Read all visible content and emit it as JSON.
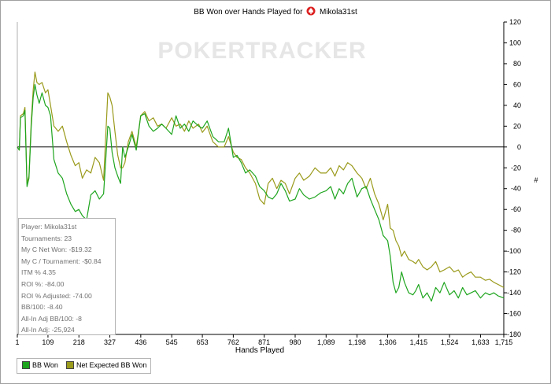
{
  "title_prefix": "BB Won over Hands Played for",
  "player_name": "Mikola31st",
  "watermark": "POKERTRACKER",
  "stats": [
    "Player: Mikola31st",
    "Tournaments: 23",
    "My C Net Won: -$19.32",
    "My C / Tournament: -$0.84",
    "ITM % 4.35",
    "ROI %: -84.00",
    "ROI % Adjusted: -74.00",
    "BB/100: -8.40",
    "All-In Adj BB/100: -8",
    "All-In Adj: -25,924"
  ],
  "legend": [
    {
      "label": "BB Won",
      "color": "#1ea51e"
    },
    {
      "label": "Net Expected BB Won",
      "color": "#9a9a1c"
    }
  ],
  "chart_data": {
    "type": "line",
    "title": "BB Won over Hands Played for Mikola31st",
    "xlabel": "Hands Played",
    "ylabel": "",
    "y_unit_label": "#",
    "xlim": [
      1,
      1715
    ],
    "ylim": [
      -180,
      120
    ],
    "x_ticks": [
      1,
      109,
      218,
      327,
      436,
      545,
      653,
      762,
      871,
      980,
      1089,
      1198,
      1306,
      1415,
      1524,
      1633,
      1715
    ],
    "y_ticks": [
      120,
      100,
      80,
      60,
      40,
      20,
      0,
      -20,
      -40,
      -60,
      -80,
      -100,
      -120,
      -140,
      -160,
      -180
    ],
    "zero_line": true,
    "grid": false,
    "series": [
      {
        "name": "BB Won",
        "color": "#1ea51e",
        "x": [
          1,
          8,
          12,
          22,
          28,
          35,
          42,
          50,
          57,
          63,
          70,
          78,
          88,
          100,
          109,
          118,
          130,
          145,
          160,
          175,
          190,
          205,
          218,
          230,
          245,
          260,
          275,
          290,
          305,
          320,
          327,
          335,
          345,
          355,
          365,
          372,
          380,
          392,
          405,
          420,
          436,
          450,
          465,
          480,
          495,
          510,
          525,
          545,
          560,
          575,
          590,
          605,
          620,
          640,
          653,
          670,
          690,
          710,
          730,
          745,
          762,
          775,
          790,
          805,
          820,
          840,
          855,
          871,
          885,
          900,
          915,
          930,
          945,
          960,
          980,
          995,
          1010,
          1030,
          1050,
          1070,
          1089,
          1105,
          1120,
          1135,
          1150,
          1165,
          1180,
          1198,
          1215,
          1230,
          1245,
          1260,
          1275,
          1290,
          1306,
          1315,
          1325,
          1335,
          1345,
          1355,
          1365,
          1380,
          1395,
          1405,
          1415,
          1430,
          1445,
          1460,
          1475,
          1490,
          1505,
          1524,
          1540,
          1555,
          1570,
          1585,
          1600,
          1615,
          1633,
          1650,
          1665,
          1680,
          1695,
          1715
        ],
        "y": [
          0,
          -3,
          28,
          30,
          35,
          -38,
          -30,
          20,
          48,
          60,
          50,
          42,
          52,
          40,
          38,
          30,
          -12,
          -25,
          -30,
          -45,
          -55,
          -62,
          -60,
          -66,
          -70,
          -46,
          -42,
          -50,
          -45,
          20,
          18,
          -5,
          -20,
          -28,
          -35,
          0,
          -10,
          0,
          12,
          -3,
          30,
          32,
          20,
          15,
          18,
          22,
          18,
          12,
          30,
          18,
          22,
          15,
          25,
          20,
          18,
          25,
          10,
          5,
          5,
          18,
          -10,
          -8,
          -15,
          -25,
          -22,
          -28,
          -38,
          -42,
          -48,
          -50,
          -45,
          -35,
          -42,
          -52,
          -50,
          -40,
          -46,
          -50,
          -48,
          -44,
          -42,
          -38,
          -50,
          -40,
          -45,
          -35,
          -30,
          -48,
          -40,
          -38,
          -50,
          -60,
          -70,
          -85,
          -90,
          -105,
          -130,
          -140,
          -135,
          -120,
          -130,
          -140,
          -142,
          -138,
          -132,
          -145,
          -140,
          -148,
          -135,
          -140,
          -130,
          -142,
          -138,
          -145,
          -135,
          -142,
          -140,
          -138,
          -145,
          -140,
          -142,
          -140,
          -143,
          -145
        ]
      },
      {
        "name": "Net Expected BB Won",
        "color": "#9a9a1c",
        "x": [
          1,
          8,
          12,
          22,
          28,
          35,
          42,
          50,
          57,
          63,
          70,
          78,
          88,
          100,
          109,
          118,
          130,
          145,
          160,
          175,
          190,
          205,
          218,
          230,
          245,
          260,
          275,
          290,
          305,
          320,
          327,
          335,
          345,
          355,
          365,
          372,
          380,
          392,
          405,
          420,
          436,
          450,
          465,
          480,
          495,
          510,
          525,
          545,
          560,
          575,
          590,
          605,
          620,
          640,
          653,
          670,
          690,
          710,
          730,
          745,
          762,
          775,
          790,
          805,
          820,
          840,
          855,
          871,
          885,
          900,
          915,
          930,
          945,
          960,
          980,
          995,
          1010,
          1030,
          1050,
          1070,
          1089,
          1105,
          1120,
          1135,
          1150,
          1165,
          1180,
          1198,
          1215,
          1230,
          1245,
          1260,
          1275,
          1290,
          1306,
          1315,
          1325,
          1335,
          1345,
          1355,
          1365,
          1380,
          1395,
          1405,
          1415,
          1430,
          1445,
          1460,
          1475,
          1490,
          1505,
          1524,
          1540,
          1555,
          1570,
          1585,
          1600,
          1615,
          1633,
          1650,
          1665,
          1680,
          1695,
          1715
        ],
        "y": [
          0,
          -3,
          30,
          32,
          38,
          -35,
          -28,
          25,
          55,
          72,
          62,
          60,
          62,
          52,
          55,
          40,
          20,
          15,
          20,
          5,
          -8,
          -18,
          -15,
          -30,
          -22,
          -25,
          -10,
          -15,
          -32,
          52,
          48,
          40,
          15,
          -8,
          -20,
          -20,
          -15,
          5,
          15,
          0,
          30,
          34,
          25,
          28,
          20,
          22,
          18,
          28,
          20,
          22,
          15,
          25,
          18,
          22,
          14,
          20,
          5,
          0,
          0,
          10,
          -5,
          -10,
          -12,
          -20,
          -25,
          -35,
          -50,
          -55,
          -35,
          -30,
          -40,
          -32,
          -35,
          -45,
          -30,
          -25,
          -32,
          -28,
          -20,
          -25,
          -25,
          -20,
          -28,
          -18,
          -22,
          -15,
          -18,
          -25,
          -30,
          -40,
          -30,
          -45,
          -55,
          -70,
          -55,
          -78,
          -80,
          -90,
          -95,
          -105,
          -100,
          -108,
          -110,
          -112,
          -108,
          -115,
          -118,
          -115,
          -110,
          -120,
          -118,
          -115,
          -120,
          -118,
          -125,
          -122,
          -120,
          -125,
          -125,
          -128,
          -127,
          -130,
          -132,
          -135
        ]
      }
    ]
  }
}
